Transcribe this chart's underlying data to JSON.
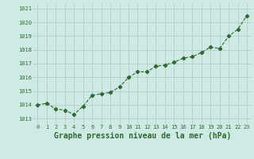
{
  "x": [
    0,
    1,
    2,
    3,
    4,
    5,
    6,
    7,
    8,
    9,
    10,
    11,
    12,
    13,
    14,
    15,
    16,
    17,
    18,
    19,
    20,
    21,
    22,
    23
  ],
  "y": [
    1014.0,
    1014.1,
    1013.7,
    1013.6,
    1013.3,
    1013.9,
    1014.7,
    1014.8,
    1014.9,
    1015.3,
    1016.0,
    1016.4,
    1016.4,
    1016.8,
    1016.9,
    1017.1,
    1017.4,
    1017.5,
    1017.8,
    1018.2,
    1018.1,
    1019.0,
    1019.5,
    1020.5
  ],
  "line_color": "#2d6a2d",
  "marker": "D",
  "marker_size": 2.2,
  "line_width": 0.8,
  "bg_color": "#ceeae4",
  "grid_color": "#b0c8c4",
  "ylabel_ticks": [
    1013,
    1014,
    1015,
    1016,
    1017,
    1018,
    1019,
    1020,
    1021
  ],
  "ylim": [
    1012.6,
    1021.4
  ],
  "xlim": [
    -0.5,
    23.5
  ],
  "xlabel": "Graphe pression niveau de la mer (hPa)",
  "xlabel_color": "#2d6a2d",
  "tick_label_color": "#2d6a2d",
  "tick_fontsize": 5.0,
  "xlabel_fontsize": 7.0,
  "xlabel_bold": true
}
